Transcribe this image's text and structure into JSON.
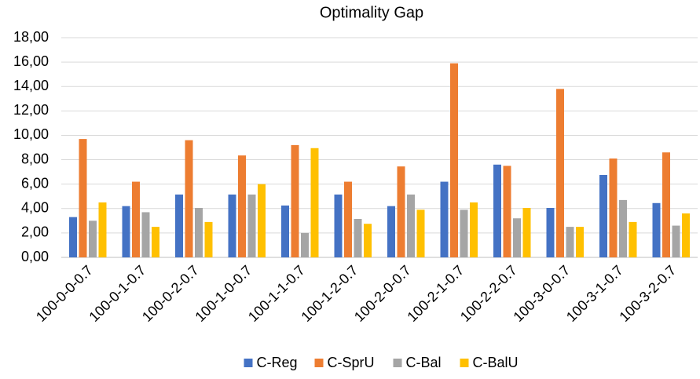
{
  "chart_data": {
    "type": "bar",
    "title": "Optimality Gap",
    "categories": [
      "100-0-0-0.7",
      "100-0-1-0.7",
      "100-0-2-0.7",
      "100-1-0-0.7",
      "100-1-1-0.7",
      "100-1-2-0.7",
      "100-2-0-0.7",
      "100-2-1-0.7",
      "100-2-2-0.7",
      "100-3-0-0.7",
      "100-3-1-0.7",
      "100-3-2-0.7"
    ],
    "series": [
      {
        "name": "C-Reg",
        "color": "#4472c4",
        "values": [
          3.3,
          4.2,
          5.15,
          5.15,
          4.25,
          5.15,
          4.2,
          6.2,
          7.6,
          4.05,
          6.75,
          4.45
        ]
      },
      {
        "name": "C-SprU",
        "color": "#ed7d31",
        "values": [
          9.7,
          6.2,
          9.6,
          8.35,
          9.2,
          6.2,
          7.45,
          15.9,
          7.5,
          13.8,
          8.1,
          8.6
        ]
      },
      {
        "name": "C-Bal",
        "color": "#a5a5a5",
        "values": [
          3.0,
          3.7,
          4.05,
          5.15,
          2.0,
          3.15,
          5.15,
          3.9,
          3.2,
          2.5,
          4.7,
          2.6
        ]
      },
      {
        "name": "C-BalU",
        "color": "#ffc000",
        "values": [
          4.5,
          2.5,
          2.9,
          6.0,
          8.95,
          2.75,
          3.9,
          4.5,
          4.05,
          2.5,
          2.9,
          3.6
        ]
      }
    ],
    "ylim": [
      0,
      18
    ],
    "yticks": [
      {
        "value": 0,
        "label": "0,00"
      },
      {
        "value": 2,
        "label": "2,00"
      },
      {
        "value": 4,
        "label": "4,00"
      },
      {
        "value": 6,
        "label": "6,00"
      },
      {
        "value": 8,
        "label": "8,00"
      },
      {
        "value": 10,
        "label": "10,00"
      },
      {
        "value": 12,
        "label": "12,00"
      },
      {
        "value": 14,
        "label": "14,00"
      },
      {
        "value": 16,
        "label": "16,00"
      },
      {
        "value": 18,
        "label": "18,00"
      }
    ],
    "grid": true,
    "legend": "bottom"
  }
}
